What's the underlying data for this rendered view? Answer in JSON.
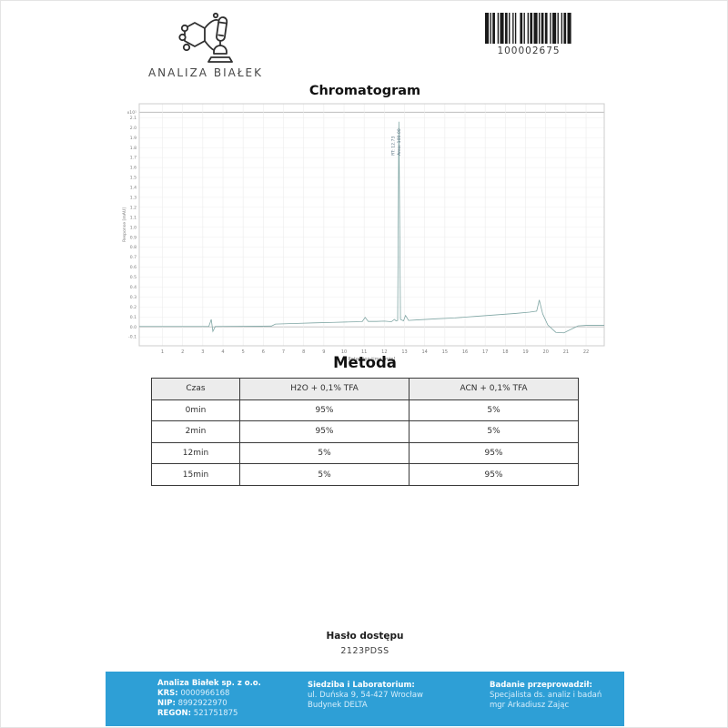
{
  "header": {
    "logo_text": "ANALIZA BIAŁEK",
    "barcode_value": "100002675"
  },
  "chromatogram_section": {
    "title": "Chromatogram"
  },
  "chart_data": {
    "type": "line",
    "title": "Chromatogram",
    "xlabel": "Retention time [min]",
    "ylabel": "Response [mAU]",
    "y_multiplier": "x10¹",
    "xlim": [
      -0.15,
      22.9
    ],
    "ylim": [
      -0.19,
      2.24
    ],
    "x_ticks": [
      1,
      2,
      3,
      4,
      5,
      6,
      7,
      8,
      9,
      10,
      11,
      12,
      13,
      14,
      15,
      16,
      17,
      18,
      19,
      20,
      21,
      22
    ],
    "y_ticks": [
      -0.1,
      0.0,
      0.1,
      0.2,
      0.3,
      0.4,
      0.5,
      0.6,
      0.7,
      0.8,
      0.9,
      1.0,
      1.1,
      1.2,
      1.3,
      1.4,
      1.5,
      1.6,
      1.7,
      1.8,
      1.9,
      2.0,
      2.1
    ],
    "grid": true,
    "line_color": "#7fa6a4",
    "peaks": [
      {
        "rt": 12.72,
        "labels": [
          "RT: 12.73",
          "Area: 100.00"
        ]
      }
    ],
    "series": [
      {
        "name": "signal",
        "points": [
          [
            -0.15,
            0.004
          ],
          [
            1.0,
            0.004
          ],
          [
            2.0,
            0.004
          ],
          [
            3.0,
            0.004
          ],
          [
            3.3,
            0.004
          ],
          [
            3.42,
            0.075
          ],
          [
            3.5,
            -0.045
          ],
          [
            3.62,
            0.004
          ],
          [
            4.5,
            0.005
          ],
          [
            5.5,
            0.006
          ],
          [
            6.4,
            0.008
          ],
          [
            6.6,
            0.028
          ],
          [
            7.5,
            0.034
          ],
          [
            8.5,
            0.04
          ],
          [
            9.5,
            0.045
          ],
          [
            10.3,
            0.05
          ],
          [
            10.9,
            0.052
          ],
          [
            11.05,
            0.095
          ],
          [
            11.2,
            0.055
          ],
          [
            11.6,
            0.055
          ],
          [
            12.0,
            0.058
          ],
          [
            12.35,
            0.052
          ],
          [
            12.5,
            0.075
          ],
          [
            12.58,
            0.06
          ],
          [
            12.66,
            0.065
          ],
          [
            12.72,
            2.06
          ],
          [
            12.8,
            0.075
          ],
          [
            12.95,
            0.06
          ],
          [
            13.05,
            0.115
          ],
          [
            13.2,
            0.065
          ],
          [
            13.6,
            0.07
          ],
          [
            14.5,
            0.08
          ],
          [
            15.5,
            0.09
          ],
          [
            16.5,
            0.105
          ],
          [
            17.5,
            0.12
          ],
          [
            18.5,
            0.135
          ],
          [
            19.2,
            0.148
          ],
          [
            19.55,
            0.158
          ],
          [
            19.68,
            0.27
          ],
          [
            19.85,
            0.13
          ],
          [
            20.1,
            0.02
          ],
          [
            20.5,
            -0.055
          ],
          [
            20.9,
            -0.06
          ],
          [
            21.3,
            -0.02
          ],
          [
            21.6,
            0.01
          ],
          [
            22.0,
            0.015
          ],
          [
            22.9,
            0.015
          ]
        ]
      }
    ]
  },
  "method": {
    "title": "Metoda",
    "table": {
      "headers": [
        "Czas",
        "H2O + 0,1% TFA",
        "ACN + 0,1% TFA"
      ],
      "rows": [
        [
          "0min",
          "95%",
          "5%"
        ],
        [
          "2min",
          "95%",
          "5%"
        ],
        [
          "12min",
          "5%",
          "95%"
        ],
        [
          "15min",
          "5%",
          "95%"
        ]
      ]
    }
  },
  "password": {
    "label": "Hasło dostępu",
    "value": "2123PDSS"
  },
  "footer": {
    "background_color": "#2e9fd6",
    "company": {
      "name": "Analiza Białek sp. z o.o.",
      "registry": [
        {
          "label": "KRS:",
          "value": "0000966168"
        },
        {
          "label": "NIP:",
          "value": "8992922970"
        },
        {
          "label": "REGON:",
          "value": "521751875"
        }
      ]
    },
    "location": {
      "heading": "Siedziba i Laboratorium:",
      "lines": [
        "ul. Duńska 9, 54-427 Wrocław",
        "Budynek DELTA"
      ]
    },
    "examiner": {
      "heading": "Badanie przeprowadził:",
      "lines": [
        "Specjalista ds. analiz i badań",
        "mgr Arkadiusz Zając"
      ]
    }
  }
}
